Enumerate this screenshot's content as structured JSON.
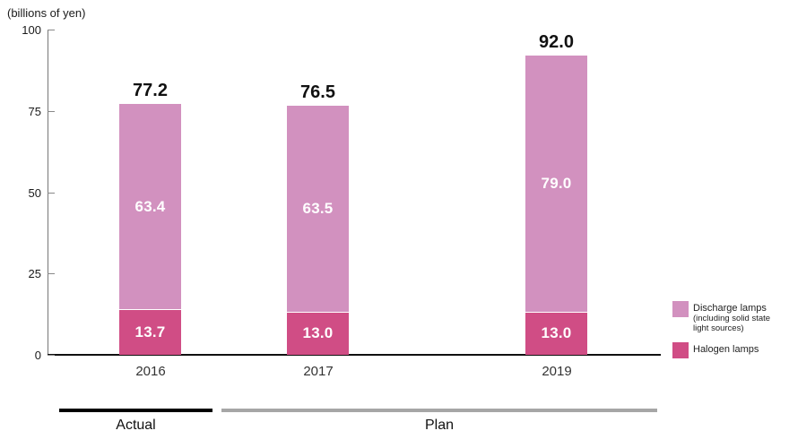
{
  "unit_label": "(billions of yen)",
  "chart_data": {
    "type": "bar",
    "stacked": true,
    "categories": [
      "2016",
      "2017",
      "2019"
    ],
    "series": [
      {
        "name": "Halogen lamps",
        "color": "#d04d85",
        "values": [
          13.7,
          13.0,
          13.0
        ]
      },
      {
        "name": "Discharge lamps (including solid state light sources)",
        "color": "#d291bf",
        "values": [
          63.4,
          63.5,
          79.0
        ]
      }
    ],
    "totals": [
      77.2,
      76.5,
      92.0
    ],
    "ylim": [
      0,
      100
    ],
    "yticks": [
      0,
      25,
      50,
      75,
      100
    ],
    "grid": false,
    "legend_position": "right",
    "value_labels": "inside-white",
    "annotations": {
      "actual_span": [
        "2016"
      ],
      "plan_span": [
        "2017",
        "2019"
      ]
    }
  },
  "legend": {
    "discharge_label": "Discharge lamps",
    "discharge_sub": "(including solid state light sources)",
    "halogen_label": "Halogen lamps"
  },
  "footer": {
    "actual_label": "Actual",
    "plan_label": "Plan"
  },
  "colors": {
    "discharge": "#d291bf",
    "halogen": "#d04d85",
    "actual_line": "#000000",
    "plan_line": "#a6a6a6",
    "axis": "#777777",
    "baseline": "#111111"
  }
}
